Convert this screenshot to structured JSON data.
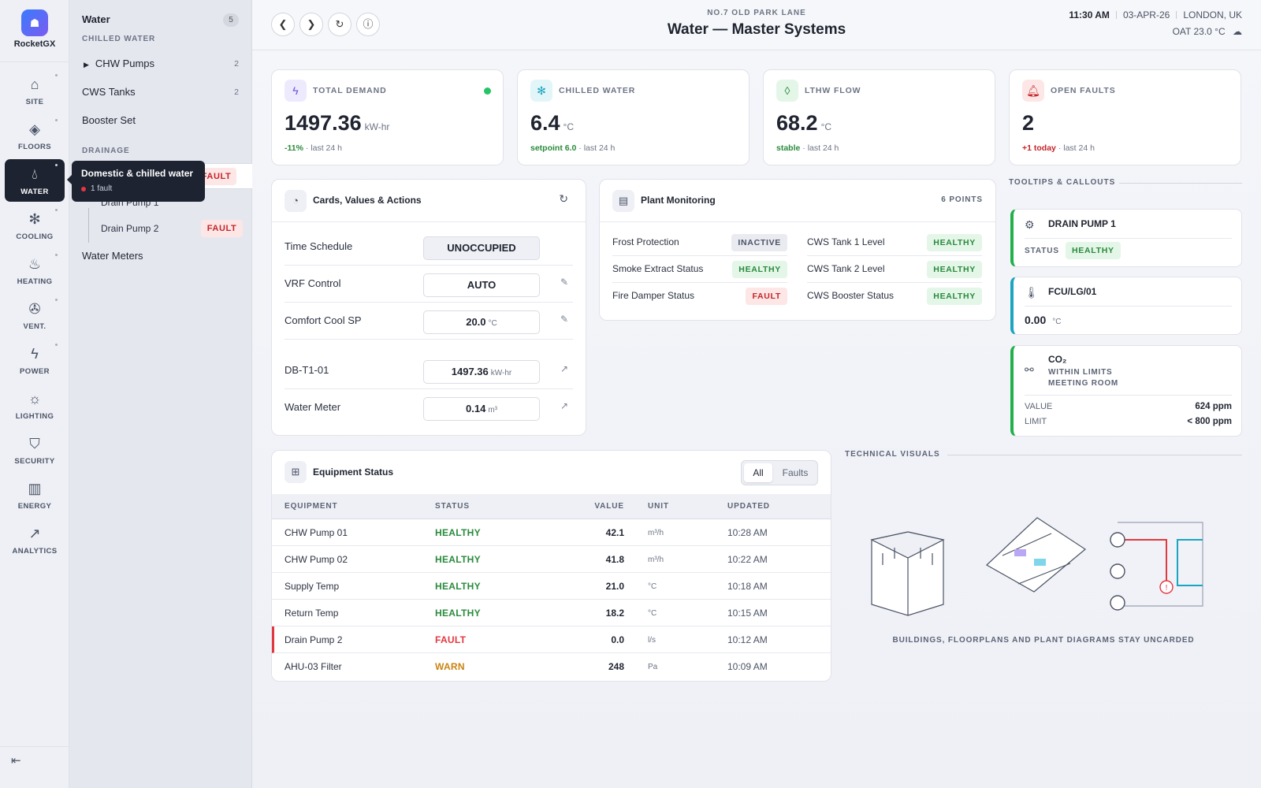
{
  "brand": {
    "name": "RocketGX"
  },
  "nav": [
    {
      "label": "SITE",
      "icon": "home-icon"
    },
    {
      "label": "FLOORS",
      "icon": "layers-icon"
    },
    {
      "label": "WATER",
      "icon": "drop-icon"
    },
    {
      "label": "COOLING",
      "icon": "snowflake-icon"
    },
    {
      "label": "HEATING",
      "icon": "flame-icon"
    },
    {
      "label": "VENT.",
      "icon": "fan-icon"
    },
    {
      "label": "POWER",
      "icon": "bolt-icon"
    },
    {
      "label": "LIGHTING",
      "icon": "bulb-icon"
    },
    {
      "label": "SECURITY",
      "icon": "shield-icon"
    },
    {
      "label": "ENERGY",
      "icon": "bar-chart-icon"
    },
    {
      "label": "ANALYTICS",
      "icon": "trend-icon"
    }
  ],
  "panel": {
    "title": "Water",
    "count": "5",
    "sec1": "CHILLED WATER",
    "sec2": "DRAINAGE",
    "items": {
      "chw": {
        "label": "CHW Pumps",
        "count": "2"
      },
      "cws": {
        "label": "CWS Tanks",
        "count": "2"
      },
      "booster": {
        "label": "Booster Set"
      },
      "meters": {
        "label": "Water Meters"
      }
    },
    "drain": {
      "fault": "FAULT",
      "pump1": "Drain Pump 1",
      "pump2": "Drain Pump 2",
      "pump2_status": "FAULT"
    }
  },
  "tooltip": {
    "title": "Domestic & chilled water",
    "sub": "1 fault"
  },
  "header": {
    "crumb": "NO.7 OLD PARK LANE",
    "title": "Water — Master Systems",
    "time": "11:30 AM",
    "date": "03-APR-26",
    "location": "LONDON, UK",
    "oat": "OAT 23.0 °C"
  },
  "kpis": {
    "demand": {
      "label": "TOTAL DEMAND",
      "value": "1497.36",
      "unit": "kW-hr",
      "delta": "-11%",
      "period": "· last 24 h"
    },
    "chw": {
      "label": "CHILLED WATER",
      "value": "6.4",
      "unit": "°C",
      "delta": "setpoint 6.0",
      "period": "· last 24 h"
    },
    "lthw": {
      "label": "LTHW FLOW",
      "value": "68.2",
      "unit": "°C",
      "delta": "stable",
      "period": "· last 24 h"
    },
    "faults": {
      "label": "OPEN FAULTS",
      "value": "2",
      "delta": "+1 today",
      "period": "· last 24 h"
    }
  },
  "cards": {
    "title": "Cards, Values & Actions",
    "rows": [
      {
        "label": "Time Schedule",
        "value": "UNOCCUPIED"
      },
      {
        "label": "VRF Control",
        "value": "AUTO"
      },
      {
        "label": "Comfort Cool SP",
        "value": "20.0",
        "unit": "°C"
      },
      {
        "label": "DB-T1-01",
        "value": "1497.36",
        "unit": "kW-hr"
      },
      {
        "label": "Water Meter",
        "value": "0.14",
        "unit": "m³"
      }
    ]
  },
  "plant": {
    "title": "Plant Monitoring",
    "points": "6 POINTS",
    "left": [
      {
        "label": "Frost Protection",
        "status": "INACTIVE"
      },
      {
        "label": "Smoke Extract Status",
        "status": "HEALTHY"
      },
      {
        "label": "Fire Damper Status",
        "status": "FAULT"
      }
    ],
    "right": [
      {
        "label": "CWS Tank 1 Level",
        "status": "HEALTHY"
      },
      {
        "label": "CWS Tank 2 Level",
        "status": "HEALTHY"
      },
      {
        "label": "CWS Booster Status",
        "status": "HEALTHY"
      }
    ]
  },
  "callouts": {
    "heading": "TOOLTIPS & CALLOUTS",
    "c1": {
      "title": "DRAIN PUMP 1",
      "status_label": "STATUS",
      "status": "HEALTHY"
    },
    "c2": {
      "title": "FCU/LG/01",
      "value": "0.00",
      "unit": "°C"
    },
    "c3": {
      "title": "CO₂",
      "sub1": "WITHIN LIMITS",
      "sub2": "MEETING ROOM",
      "value_label": "VALUE",
      "value": "624 ppm",
      "limit_label": "LIMIT",
      "limit": "< 800 ppm"
    }
  },
  "equipment": {
    "title": "Equipment Status",
    "filters": {
      "all": "All",
      "faults": "Faults"
    },
    "columns": [
      "EQUIPMENT",
      "STATUS",
      "VALUE",
      "UNIT",
      "UPDATED"
    ],
    "rows": [
      {
        "name": "CHW Pump 01",
        "status": "HEALTHY",
        "value": "42.1",
        "unit": "m³/h",
        "updated": "10:28 AM"
      },
      {
        "name": "CHW Pump 02",
        "status": "HEALTHY",
        "value": "41.8",
        "unit": "m³/h",
        "updated": "10:22 AM"
      },
      {
        "name": "Supply Temp",
        "status": "HEALTHY",
        "value": "21.0",
        "unit": "°C",
        "updated": "10:18 AM"
      },
      {
        "name": "Return Temp",
        "status": "HEALTHY",
        "value": "18.2",
        "unit": "°C",
        "updated": "10:15 AM"
      },
      {
        "name": "Drain Pump 2",
        "status": "FAULT",
        "value": "0.0",
        "unit": "l/s",
        "updated": "10:12 AM"
      },
      {
        "name": "AHU-03 Filter",
        "status": "WARN",
        "value": "248",
        "unit": "Pa",
        "updated": "10:09 AM"
      }
    ]
  },
  "visuals": {
    "heading": "TECHNICAL VISUALS",
    "caption": "BUILDINGS, FLOORPLANS AND PLANT DIAGRAMS STAY UNCARDED"
  },
  "colors": {
    "healthy": "#2a8a3c",
    "fault": "#c4242a",
    "warn": "#c98410",
    "accent": "#3a7bfd"
  }
}
